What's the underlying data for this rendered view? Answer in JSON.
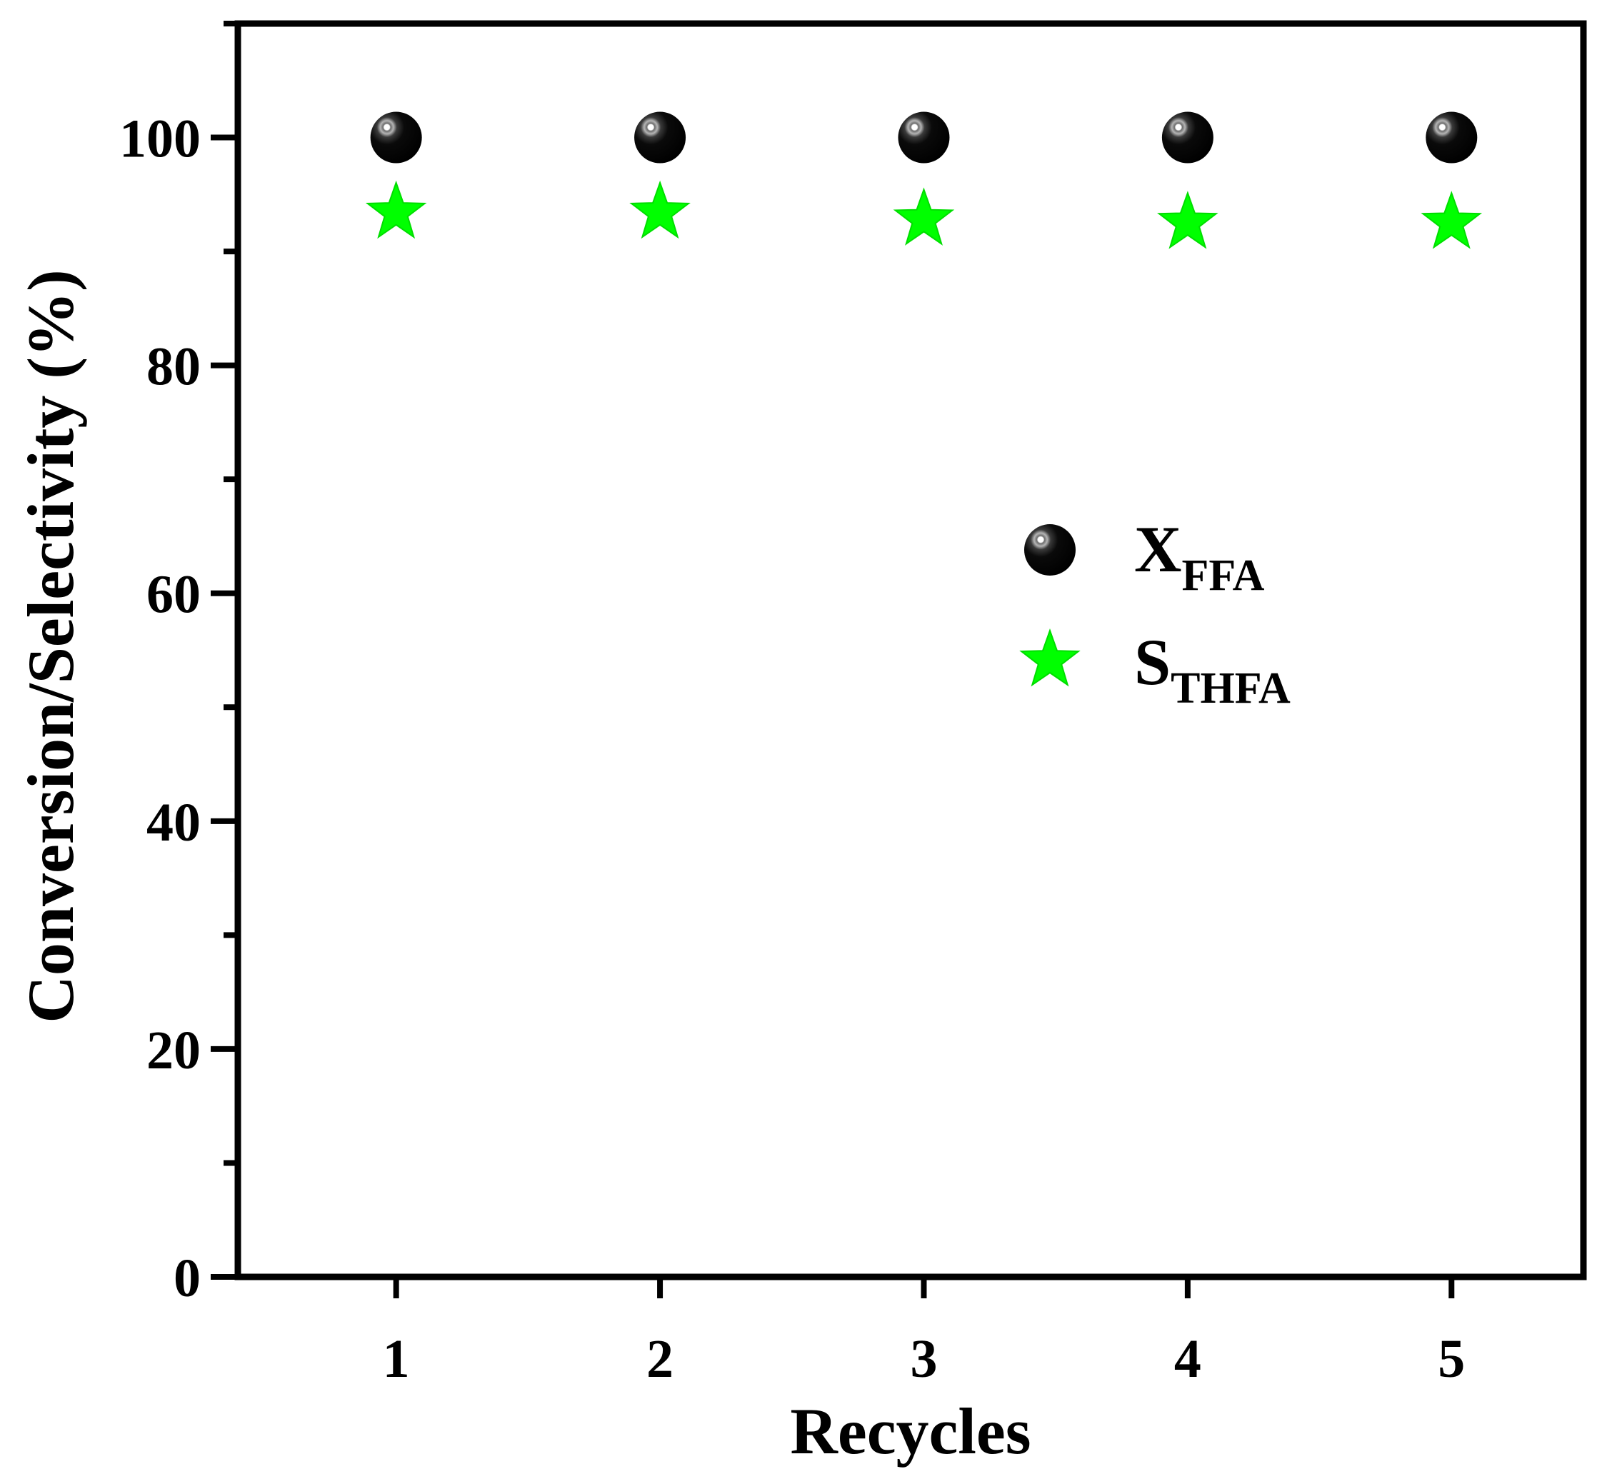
{
  "chart_data": {
    "type": "scatter",
    "title": "",
    "xlabel": "Recycles",
    "ylabel": "Conversion/Selectivity (%)",
    "x": [
      1,
      2,
      3,
      4,
      5
    ],
    "x_ticks": [
      "1",
      "2",
      "3",
      "4",
      "5"
    ],
    "xlim": [
      0.4,
      5.5
    ],
    "ylim": [
      0,
      110
    ],
    "y_ticks": [
      "0",
      "20",
      "40",
      "60",
      "80",
      "100"
    ],
    "grid": false,
    "legend_position": "center-right",
    "series": [
      {
        "name": "X",
        "name_subscript": "FFA",
        "marker": "sphere",
        "color": "#000000",
        "values": [
          100,
          100,
          100,
          100,
          100
        ]
      },
      {
        "name": "S",
        "name_subscript": "THFA",
        "marker": "star",
        "color": "#00ff00",
        "values": [
          93.4,
          93.4,
          92.8,
          92.5,
          92.5
        ]
      }
    ]
  }
}
